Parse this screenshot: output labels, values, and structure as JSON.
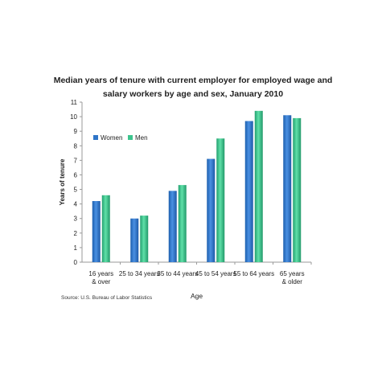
{
  "chart_data": {
    "type": "bar",
    "title": "Median years of tenure with current employer for employed wage and salary workers by age and sex, January 2010",
    "xlabel": "Age",
    "ylabel": "Years of tenure",
    "ylim": [
      0,
      11
    ],
    "yticks": [
      0,
      1,
      2,
      3,
      4,
      5,
      6,
      7,
      8,
      9,
      10,
      11
    ],
    "categories": [
      [
        "16 years",
        "& over"
      ],
      [
        "25 to 34 years"
      ],
      [
        "35 to 44 years"
      ],
      [
        "45 to 54 years"
      ],
      [
        "55 to 64 years"
      ],
      [
        "65 years",
        "& older"
      ]
    ],
    "series": [
      {
        "name": "Women",
        "values": [
          4.2,
          3.0,
          4.9,
          7.1,
          9.7,
          10.1
        ],
        "color": "#2e75c8"
      },
      {
        "name": "Men",
        "values": [
          4.6,
          3.2,
          5.3,
          8.5,
          10.4,
          9.9
        ],
        "color": "#3cc48d"
      }
    ],
    "legend_position": "top-left",
    "grid": false,
    "source": "Source:  U.S. Bureau of Labor Statistics"
  }
}
